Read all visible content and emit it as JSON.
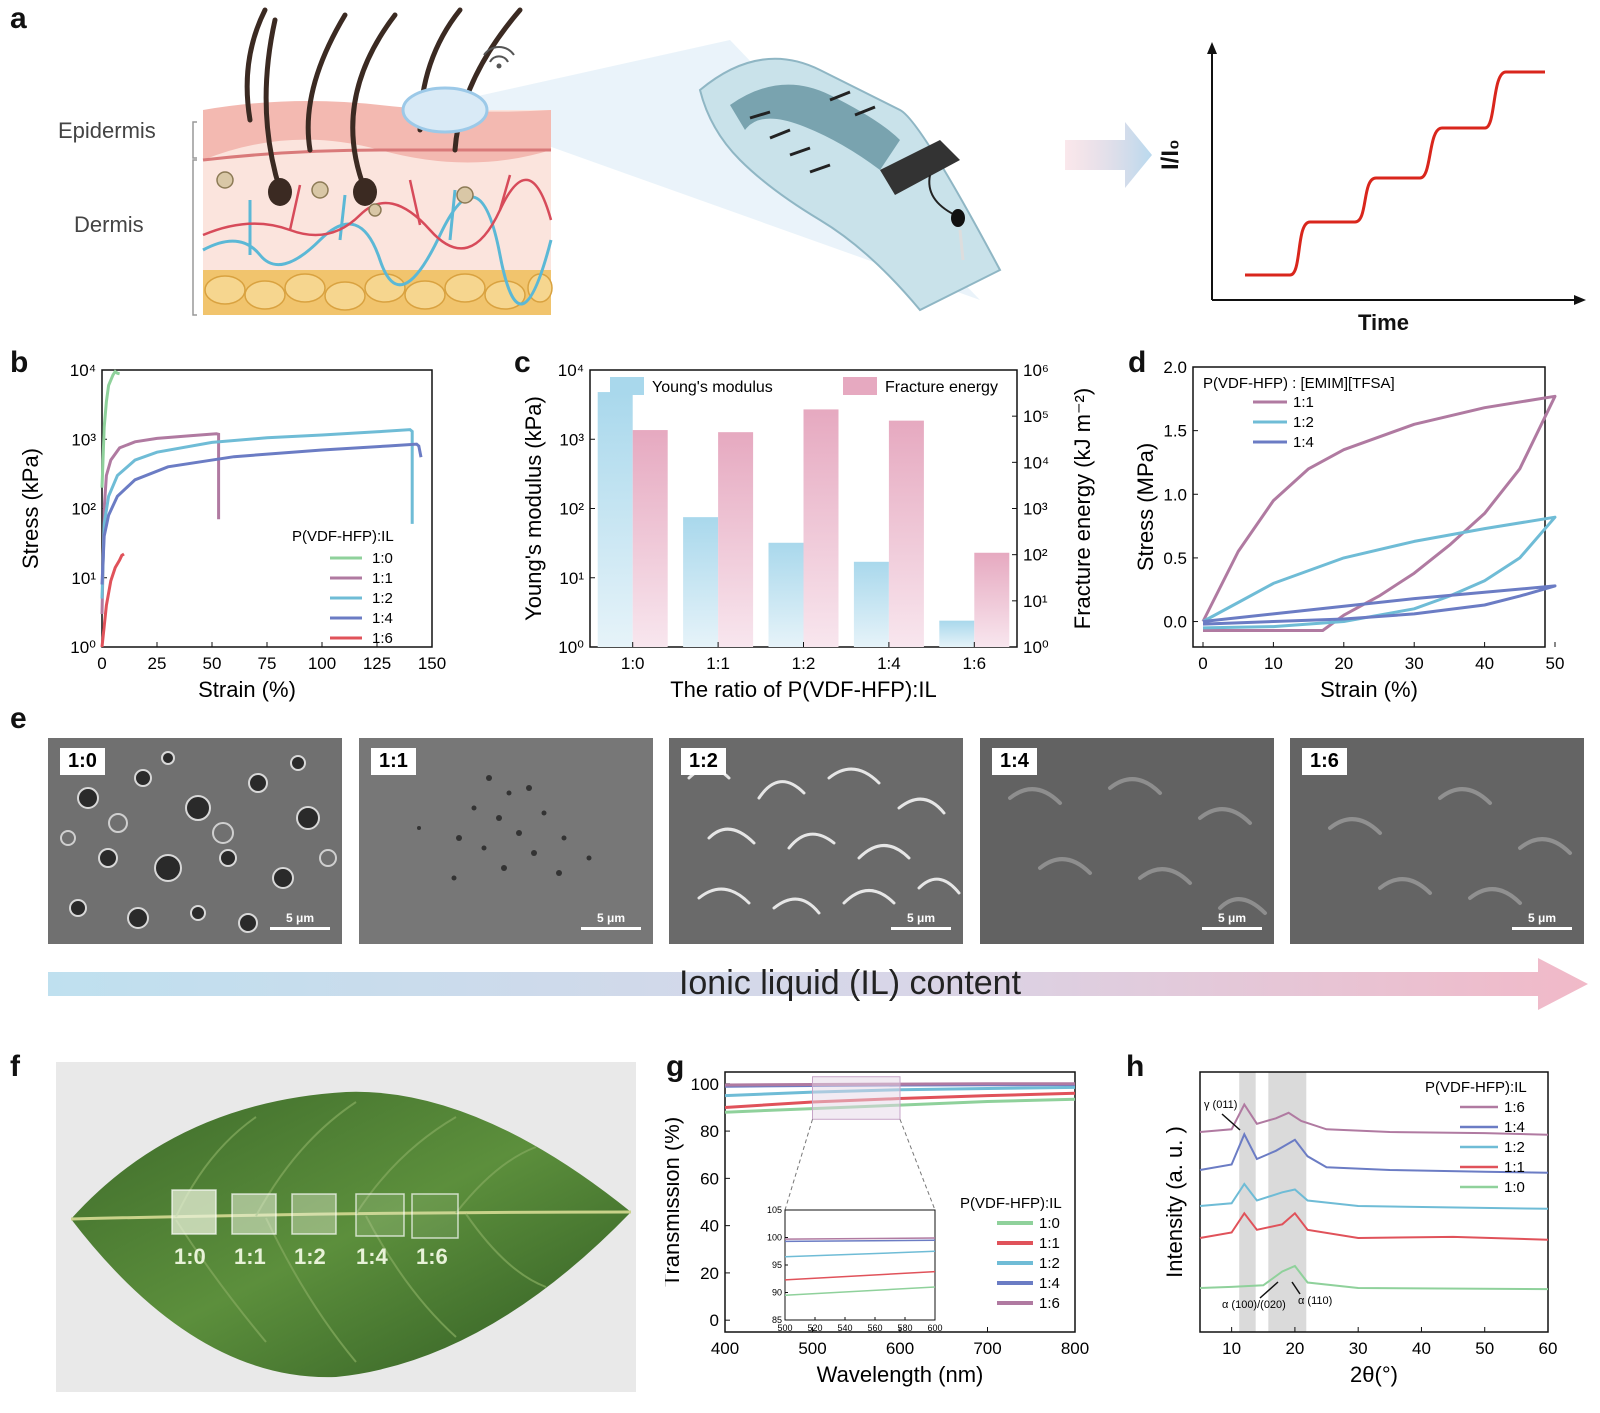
{
  "panel_labels": [
    "a",
    "b",
    "c",
    "d",
    "e",
    "f",
    "g",
    "h"
  ],
  "panel_a": {
    "skin_layers": [
      "Epidermis",
      "Dermis"
    ],
    "signal_plot": {
      "ylabel": "I/I₀",
      "xlabel": "Time"
    },
    "colors": {
      "signal": "#d9261c",
      "skin_pink": "#f2b5b1",
      "vessel_red": "#d74b5a",
      "vessel_blue": "#5bb8d6",
      "fat": "#f0c36a"
    }
  },
  "panel_e": {
    "ratios": [
      "1:0",
      "1:1",
      "1:2",
      "1:4",
      "1:6"
    ],
    "scale_bar": "5 μm",
    "gradient_label": "Ionic liquid (IL) content"
  },
  "panel_f": {
    "ratios": [
      "1:0",
      "1:1",
      "1:2",
      "1:4",
      "1:6"
    ]
  },
  "chart_data": [
    {
      "panel": "b",
      "type": "line",
      "xlabel": "Strain (%)",
      "ylabel": "Stress (kPa)",
      "xlim": [
        0,
        150
      ],
      "xticks": [
        0,
        25,
        50,
        75,
        100,
        125,
        150
      ],
      "ylim": [
        1,
        10000
      ],
      "yscale": "log",
      "yticks": [
        "10⁰",
        "10¹",
        "10²",
        "10³",
        "10⁴"
      ],
      "legend_title": "P(VDF-HFP):IL",
      "legend_placement": "center-right",
      "series": [
        {
          "name": "1:0",
          "color": "#8fd19b",
          "points": [
            [
              0,
              200
            ],
            [
              1,
              1500
            ],
            [
              2,
              3500
            ],
            [
              3,
              6000
            ],
            [
              5,
              8500
            ],
            [
              6,
              9500
            ],
            [
              7,
              9000
            ],
            [
              8,
              8800
            ]
          ]
        },
        {
          "name": "1:1",
          "color": "#b07aa1",
          "points": [
            [
              0,
              3
            ],
            [
              1,
              100
            ],
            [
              2,
              300
            ],
            [
              4,
              500
            ],
            [
              8,
              750
            ],
            [
              15,
              920
            ],
            [
              25,
              1030
            ],
            [
              40,
              1120
            ],
            [
              52,
              1200
            ],
            [
              53,
              1180
            ],
            [
              53,
              70
            ]
          ]
        },
        {
          "name": "1:2",
          "color": "#6fbcd6",
          "points": [
            [
              0,
              5
            ],
            [
              1,
              60
            ],
            [
              3,
              150
            ],
            [
              7,
              300
            ],
            [
              15,
              500
            ],
            [
              25,
              650
            ],
            [
              50,
              900
            ],
            [
              75,
              1050
            ],
            [
              100,
              1150
            ],
            [
              125,
              1280
            ],
            [
              140,
              1380
            ],
            [
              141,
              1300
            ],
            [
              141,
              60
            ]
          ]
        },
        {
          "name": "1:4",
          "color": "#6b7cc4",
          "points": [
            [
              0,
              8
            ],
            [
              1,
              40
            ],
            [
              3,
              80
            ],
            [
              7,
              150
            ],
            [
              15,
              260
            ],
            [
              30,
              400
            ],
            [
              60,
              560
            ],
            [
              100,
              700
            ],
            [
              130,
              800
            ],
            [
              143,
              850
            ],
            [
              144,
              800
            ],
            [
              145,
              550
            ]
          ]
        },
        {
          "name": "1:6",
          "color": "#e0525a",
          "points": [
            [
              0,
              1
            ],
            [
              1,
              2
            ],
            [
              2,
              4
            ],
            [
              4,
              9
            ],
            [
              6,
              14
            ],
            [
              8,
              18
            ],
            [
              9,
              21
            ],
            [
              10,
              22
            ]
          ]
        }
      ]
    },
    {
      "panel": "c",
      "type": "bar",
      "xlabel": "The ratio of P(VDF-HFP):IL",
      "ylabel": "Young's modulus (kPa)",
      "y2label": "Fracture energy (kJ m⁻²)",
      "categories": [
        "1:0",
        "1:1",
        "1:2",
        "1:4",
        "1:6"
      ],
      "ylim": [
        1,
        10000
      ],
      "yscale": "log",
      "yticks": [
        "10⁰",
        "10¹",
        "10²",
        "10³",
        "10⁴"
      ],
      "y2lim": [
        1,
        1000000
      ],
      "y2scale": "log",
      "y2ticks": [
        "10⁰",
        "10¹",
        "10²",
        "10³",
        "10⁴",
        "10⁵",
        "10⁶"
      ],
      "legend_placement": "top",
      "series": [
        {
          "name": "Young's modulus",
          "axis": "left",
          "color": "#a9d8ec",
          "values": [
            4800,
            75,
            32,
            17,
            2.4
          ]
        },
        {
          "name": "Fracture energy",
          "axis": "right",
          "color": "#e6a9c0",
          "values": [
            50000,
            45000,
            140000,
            80000,
            110
          ]
        }
      ]
    },
    {
      "panel": "d",
      "type": "line",
      "xlabel": "Strain (%)",
      "ylabel": "Stress (MPa)",
      "xlim": [
        0,
        50
      ],
      "xticks": [
        0,
        10,
        20,
        30,
        40,
        50
      ],
      "ylim": [
        -0.2,
        2.0
      ],
      "yticks": [
        0.0,
        0.5,
        1.0,
        1.5,
        2.0
      ],
      "legend_title": "P(VDF-HFP) : [EMIM][TFSA]",
      "legend_placement": "top-left",
      "series": [
        {
          "name": "1:1",
          "color": "#b07aa1",
          "loading": [
            [
              0,
              0
            ],
            [
              5,
              0.55
            ],
            [
              10,
              0.95
            ],
            [
              15,
              1.2
            ],
            [
              20,
              1.35
            ],
            [
              30,
              1.55
            ],
            [
              40,
              1.68
            ],
            [
              50,
              1.77
            ]
          ],
          "unloading": [
            [
              50,
              1.77
            ],
            [
              45,
              1.2
            ],
            [
              40,
              0.85
            ],
            [
              35,
              0.6
            ],
            [
              30,
              0.38
            ],
            [
              25,
              0.2
            ],
            [
              20,
              0.05
            ],
            [
              17,
              -0.07
            ],
            [
              0,
              -0.07
            ]
          ]
        },
        {
          "name": "1:2",
          "color": "#6fbcd6",
          "loading": [
            [
              0,
              0
            ],
            [
              5,
              0.15
            ],
            [
              10,
              0.3
            ],
            [
              20,
              0.5
            ],
            [
              30,
              0.63
            ],
            [
              40,
              0.73
            ],
            [
              50,
              0.82
            ]
          ],
          "unloading": [
            [
              50,
              0.82
            ],
            [
              45,
              0.5
            ],
            [
              40,
              0.32
            ],
            [
              35,
              0.2
            ],
            [
              30,
              0.1
            ],
            [
              20,
              0.0
            ],
            [
              10,
              -0.04
            ],
            [
              0,
              -0.05
            ]
          ]
        },
        {
          "name": "1:4",
          "color": "#6b7cc4",
          "loading": [
            [
              0,
              0
            ],
            [
              10,
              0.06
            ],
            [
              20,
              0.12
            ],
            [
              30,
              0.18
            ],
            [
              40,
              0.23
            ],
            [
              50,
              0.28
            ]
          ],
          "unloading": [
            [
              50,
              0.28
            ],
            [
              45,
              0.2
            ],
            [
              40,
              0.13
            ],
            [
              30,
              0.06
            ],
            [
              20,
              0.02
            ],
            [
              10,
              0.0
            ],
            [
              0,
              -0.02
            ]
          ]
        }
      ]
    },
    {
      "panel": "g",
      "type": "line",
      "xlabel": "Wavelength (nm)",
      "ylabel": "Transmission (%)",
      "xlim": [
        400,
        800
      ],
      "xticks": [
        400,
        500,
        600,
        700,
        800
      ],
      "ylim": [
        -5,
        105
      ],
      "yticks": [
        0,
        20,
        40,
        60,
        80,
        100
      ],
      "legend_title": "P(VDF-HFP):IL",
      "legend_placement": "bottom-right",
      "inset": {
        "xlim": [
          500,
          600
        ],
        "xticks": [
          500,
          520,
          540,
          560,
          580,
          600
        ],
        "ylim": [
          85,
          105
        ],
        "yticks": [
          85,
          90,
          95,
          100,
          105
        ]
      },
      "series": [
        {
          "name": "1:0",
          "color": "#8fd19b",
          "points": [
            [
              400,
              88
            ],
            [
              500,
              89.5
            ],
            [
              600,
              91
            ],
            [
              700,
              92.5
            ],
            [
              800,
              93.5
            ]
          ]
        },
        {
          "name": "1:1",
          "color": "#e0525a",
          "points": [
            [
              400,
              90
            ],
            [
              500,
              92.3
            ],
            [
              600,
              93.8
            ],
            [
              700,
              95
            ],
            [
              800,
              96
            ]
          ]
        },
        {
          "name": "1:2",
          "color": "#6fbcd6",
          "points": [
            [
              400,
              95
            ],
            [
              500,
              96.5
            ],
            [
              600,
              97.5
            ],
            [
              700,
              98
            ],
            [
              800,
              98.5
            ]
          ]
        },
        {
          "name": "1:4",
          "color": "#6b7cc4",
          "points": [
            [
              400,
              99
            ],
            [
              500,
              99.3
            ],
            [
              600,
              99.5
            ],
            [
              700,
              99.6
            ],
            [
              800,
              99.7
            ]
          ]
        },
        {
          "name": "1:6",
          "color": "#b07aa1",
          "points": [
            [
              400,
              99.5
            ],
            [
              500,
              99.7
            ],
            [
              600,
              99.9
            ],
            [
              700,
              100
            ],
            [
              800,
              100
            ]
          ]
        }
      ]
    },
    {
      "panel": "h",
      "type": "line",
      "xlabel": "2θ(°)",
      "ylabel": "Intensity (a. u. )",
      "xlim": [
        5,
        60
      ],
      "xticks": [
        10,
        20,
        30,
        40,
        50,
        60
      ],
      "legend_title": "P(VDF-HFP):IL",
      "legend_placement": "top-right",
      "annotations": [
        "γ (011)",
        "α (100)/(020)",
        "α (110)"
      ],
      "highlight_ranges": [
        [
          11.2,
          13.8
        ],
        [
          15.8,
          21.8
        ]
      ],
      "series": [
        {
          "name": "1:6",
          "color": "#b07aa1",
          "points": [
            [
              5,
              1.0
            ],
            [
              10,
              1.05
            ],
            [
              12,
              1.5
            ],
            [
              14,
              1.15
            ],
            [
              17,
              1.25
            ],
            [
              19,
              1.35
            ],
            [
              21,
              1.2
            ],
            [
              25,
              1.05
            ],
            [
              35,
              1.0
            ],
            [
              50,
              0.98
            ],
            [
              60,
              0.95
            ]
          ]
        },
        {
          "name": "1:4",
          "color": "#6b7cc4",
          "points": [
            [
              5,
              1.0
            ],
            [
              10,
              1.1
            ],
            [
              12,
              1.65
            ],
            [
              14,
              1.2
            ],
            [
              17,
              1.35
            ],
            [
              20,
              1.55
            ],
            [
              22,
              1.25
            ],
            [
              25,
              1.05
            ],
            [
              35,
              1.0
            ],
            [
              50,
              0.97
            ],
            [
              60,
              0.95
            ]
          ]
        },
        {
          "name": "1:2",
          "color": "#6fbcd6",
          "points": [
            [
              5,
              1.0
            ],
            [
              10,
              1.05
            ],
            [
              12,
              1.4
            ],
            [
              14,
              1.1
            ],
            [
              18,
              1.25
            ],
            [
              20,
              1.3
            ],
            [
              22,
              1.1
            ],
            [
              30,
              1.0
            ],
            [
              60,
              0.95
            ]
          ]
        },
        {
          "name": "1:1",
          "color": "#e0525a",
          "points": [
            [
              5,
              1.0
            ],
            [
              10,
              1.1
            ],
            [
              12,
              1.45
            ],
            [
              14,
              1.15
            ],
            [
              18,
              1.25
            ],
            [
              20,
              1.45
            ],
            [
              22,
              1.15
            ],
            [
              30,
              1.0
            ],
            [
              45,
              1.02
            ],
            [
              60,
              0.97
            ]
          ]
        },
        {
          "name": "1:0",
          "color": "#8fd19b",
          "points": [
            [
              5,
              1.0
            ],
            [
              10,
              1.02
            ],
            [
              15,
              1.05
            ],
            [
              18,
              1.3
            ],
            [
              20,
              1.4
            ],
            [
              22,
              1.1
            ],
            [
              30,
              1.0
            ],
            [
              60,
              0.98
            ]
          ]
        }
      ]
    }
  ]
}
